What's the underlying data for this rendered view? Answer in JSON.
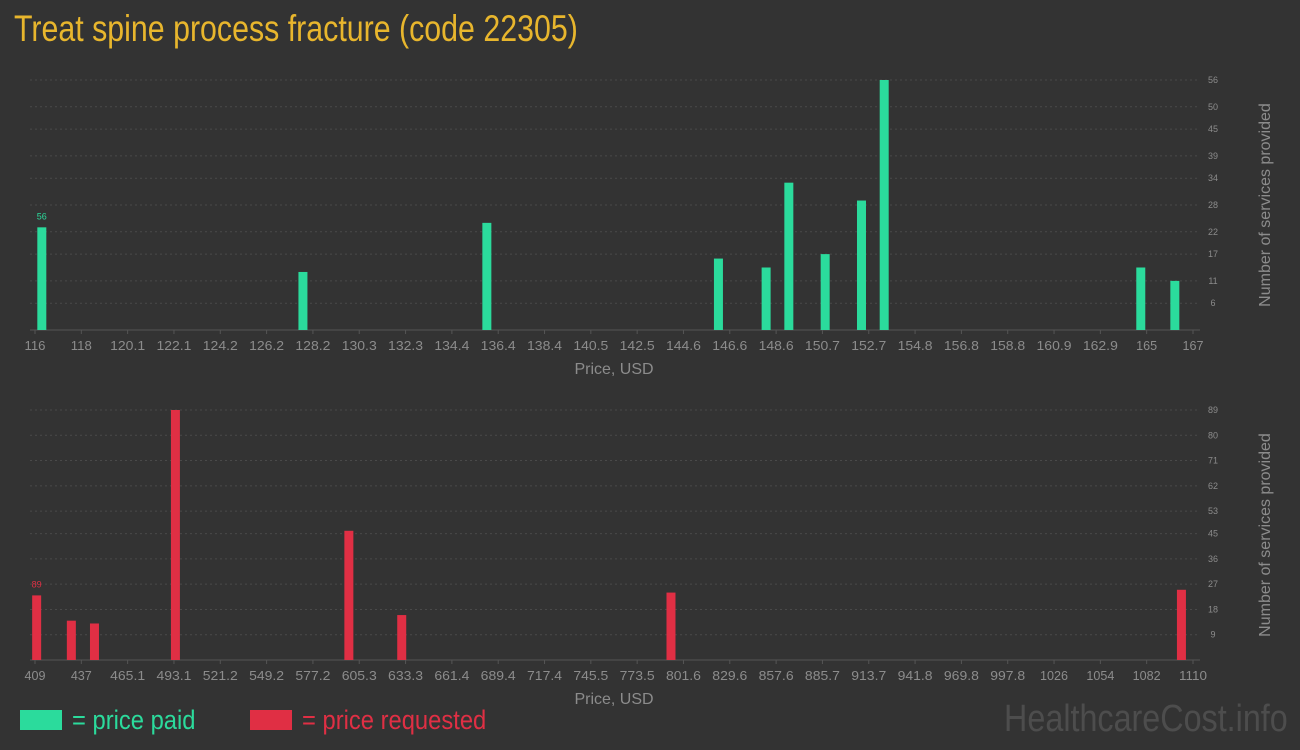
{
  "title": "Treat spine process fracture (code 22305)",
  "colors": {
    "background": "#333333",
    "title": "#e8b62d",
    "paid": "#2bdb9c",
    "requested": "#e02f44",
    "axis_text": "#8c8c8c",
    "grid": "#4a4a4a"
  },
  "legend": {
    "paid_label": "= price paid",
    "requested_label": "= price requested"
  },
  "watermark": "HealthcareCost.info",
  "chart_data": [
    {
      "type": "bar",
      "series_key": "paid",
      "xlabel": "Price, USD",
      "ylabel": "Number of services provided",
      "x_ticks": [
        "116",
        "118",
        "120.1",
        "122.1",
        "124.2",
        "126.2",
        "128.2",
        "130.3",
        "132.3",
        "134.4",
        "136.4",
        "138.4",
        "140.5",
        "142.5",
        "144.6",
        "146.6",
        "148.6",
        "150.7",
        "152.7",
        "154.8",
        "156.8",
        "158.8",
        "160.9",
        "162.9",
        "165",
        "167"
      ],
      "xlim": [
        116,
        167
      ],
      "y_ticks": [
        6,
        11,
        17,
        22,
        28,
        34,
        39,
        45,
        50,
        56
      ],
      "ylim": [
        0,
        56
      ],
      "max_label": "56",
      "bars": [
        {
          "x": 116.3,
          "y": 23
        },
        {
          "x": 127.8,
          "y": 13
        },
        {
          "x": 135.9,
          "y": 24
        },
        {
          "x": 146.1,
          "y": 16
        },
        {
          "x": 148.2,
          "y": 14
        },
        {
          "x": 149.2,
          "y": 33
        },
        {
          "x": 150.8,
          "y": 17
        },
        {
          "x": 152.4,
          "y": 29
        },
        {
          "x": 153.4,
          "y": 56
        },
        {
          "x": 164.7,
          "y": 14
        },
        {
          "x": 166.2,
          "y": 11
        }
      ]
    },
    {
      "type": "bar",
      "series_key": "requested",
      "xlabel": "Price, USD",
      "ylabel": "Number of services provided",
      "x_ticks": [
        "409",
        "437",
        "465.1",
        "493.1",
        "521.2",
        "549.2",
        "577.2",
        "605.3",
        "633.3",
        "661.4",
        "689.4",
        "717.4",
        "745.5",
        "773.5",
        "801.6",
        "829.6",
        "857.6",
        "885.7",
        "913.7",
        "941.8",
        "969.8",
        "997.8",
        "1026",
        "1054",
        "1082",
        "1110"
      ],
      "xlim": [
        409,
        1110
      ],
      "y_ticks": [
        9,
        18,
        27,
        36,
        45,
        53,
        62,
        71,
        80,
        89
      ],
      "ylim": [
        0,
        89
      ],
      "max_label": "89",
      "bars": [
        {
          "x": 410,
          "y": 23
        },
        {
          "x": 431,
          "y": 14
        },
        {
          "x": 445,
          "y": 13
        },
        {
          "x": 494,
          "y": 89
        },
        {
          "x": 599,
          "y": 46
        },
        {
          "x": 631,
          "y": 16
        },
        {
          "x": 794,
          "y": 24
        },
        {
          "x": 1103,
          "y": 25
        }
      ]
    }
  ]
}
